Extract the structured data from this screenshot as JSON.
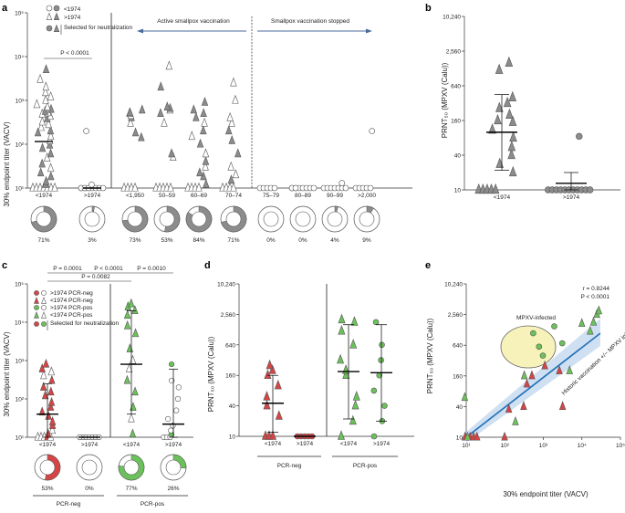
{
  "chart_data": [
    {
      "panel": "a",
      "type": "scatter",
      "ylabel": "30% endpoint titer (VACV)",
      "ylim_log10": [
        1,
        5
      ],
      "ytick_labels": [
        "10¹",
        "10²",
        "10³",
        "10⁴",
        "10⁵"
      ],
      "legend": [
        "<1974",
        ">1974",
        "Selected for neutralization"
      ],
      "annotations": {
        "pvalue": "P < 0.0001",
        "active": "Active smallpox vaccination",
        "stopped": "Smallpox vaccination stopped"
      },
      "categories": [
        "<1974",
        ">1974",
        "<1,950",
        "50–59",
        "60–69",
        "70–74",
        "75–79",
        "80–89",
        "90–99",
        ">2,000"
      ],
      "percent_labels": [
        "71%",
        "3%",
        "73%",
        "53%",
        "84%",
        "71%",
        "0%",
        "0%",
        "4%",
        "9%"
      ],
      "percent_values": [
        71,
        3,
        73,
        53,
        84,
        71,
        0,
        0,
        4,
        9
      ],
      "median_titers": [
        115,
        10,
        null,
        null,
        null,
        null,
        null,
        null,
        null,
        null
      ],
      "points": [
        [
          10,
          10,
          10,
          10,
          10,
          10,
          10,
          12,
          14,
          18,
          22,
          28,
          35,
          48,
          60,
          80,
          95,
          120,
          150,
          180,
          200,
          240,
          280,
          320,
          380,
          430,
          480,
          520,
          560,
          620,
          700,
          800,
          1000,
          1200,
          1500,
          2000,
          3000,
          5000
        ],
        [
          10,
          10,
          10,
          10,
          10,
          10,
          10,
          10,
          10,
          10,
          12,
          200
        ],
        [
          10,
          10,
          10,
          10,
          140,
          180,
          300,
          400,
          450,
          500,
          520,
          600
        ],
        [
          10,
          10,
          10,
          10,
          10,
          50,
          60,
          300,
          500,
          600,
          650,
          700,
          2000,
          6000
        ],
        [
          10,
          10,
          10,
          10,
          12,
          18,
          22,
          30,
          40,
          60,
          100,
          150,
          200,
          300,
          400,
          500,
          600,
          900
        ],
        [
          10,
          10,
          10,
          10,
          15,
          20,
          30,
          60,
          120,
          200,
          300,
          400,
          1000,
          2500
        ],
        [
          10,
          10,
          10,
          10,
          10
        ],
        [
          10,
          10,
          10,
          10,
          10,
          10,
          10,
          10,
          10
        ],
        [
          10,
          10,
          10,
          10,
          10,
          10,
          10,
          13
        ],
        [
          10,
          10,
          10,
          10,
          10,
          200
        ]
      ]
    },
    {
      "panel": "b",
      "type": "scatter",
      "ylabel": "PRNT₅₀ (MPXV (Calu))",
      "ytick_labels": [
        "10",
        "40",
        "160",
        "640",
        "2,560",
        "10,240"
      ],
      "categories": [
        "<1974",
        ">1974"
      ],
      "points": [
        [
          10,
          10,
          10,
          10,
          10,
          20,
          28,
          40,
          55,
          80,
          110,
          150,
          160,
          200,
          260,
          320,
          400,
          1200,
          1600
        ],
        [
          10,
          10,
          10,
          10,
          10,
          10,
          10,
          10,
          10,
          10,
          10,
          85
        ]
      ],
      "mean": [
        100,
        13
      ],
      "error_low": [
        22,
        10
      ],
      "error_high": [
        450,
        20
      ]
    },
    {
      "panel": "c",
      "type": "scatter",
      "ylabel": "30% endpoint titer (VACV)",
      "ytick_labels": [
        "10¹",
        "10²",
        "10³",
        "10⁴",
        "10⁵"
      ],
      "legend": [
        ">1974 PCR-neg",
        "<1974 PCR-neg",
        ">1974 PCR-pos",
        "<1974 PCR-pos",
        "Selected for neutralization"
      ],
      "pvalues": [
        "P = 0.0001",
        "P < 0.0001",
        "P = 0.0010",
        "P = 0.0082"
      ],
      "categories": [
        "<1974",
        ">1974",
        "<1974",
        ">1974"
      ],
      "groups": [
        "PCR-neg",
        "PCR-pos"
      ],
      "percent_labels": [
        "53%",
        "0%",
        "77%",
        "26%"
      ],
      "percent_values": [
        53,
        0,
        77,
        26
      ],
      "points": [
        [
          10,
          10,
          10,
          10,
          10,
          12,
          15,
          20,
          25,
          35,
          45,
          60,
          80,
          120,
          150,
          200,
          300,
          400,
          500,
          600,
          800
        ],
        [
          10,
          10,
          10,
          10,
          10,
          10,
          10,
          10
        ],
        [
          12,
          30,
          60,
          150,
          300,
          600,
          1000,
          2000,
          5000,
          8000,
          15000,
          20000,
          25000,
          30000
        ],
        [
          10,
          10,
          10,
          12,
          15,
          20,
          30,
          50,
          100,
          200,
          300,
          800
        ]
      ],
      "median": [
        40,
        10,
        800,
        22
      ],
      "error_low": [
        10,
        10,
        40,
        10
      ],
      "error_high": [
        250,
        10,
        20000,
        600
      ]
    },
    {
      "panel": "d",
      "type": "scatter",
      "ylabel": "PRNT₅₀ (MPXV (Calu))",
      "ytick_labels": [
        "10",
        "40",
        "160",
        "640",
        "2,560",
        "10,240"
      ],
      "categories": [
        "<1974",
        ">1974",
        "<1974",
        ">1974"
      ],
      "groups": [
        "PCR-neg",
        "PCR-pos"
      ],
      "points": [
        [
          10,
          10,
          10,
          25,
          40,
          60,
          100,
          160,
          200,
          250
        ],
        [
          10,
          10,
          10,
          10,
          10
        ],
        [
          10,
          20,
          40,
          60,
          160,
          200,
          320,
          640,
          1200,
          1800,
          2000
        ],
        [
          10,
          20,
          40,
          80,
          160,
          320,
          640,
          1800
        ]
      ],
      "mean": [
        45,
        10,
        190,
        180
      ],
      "error_low": [
        12,
        10,
        22,
        20
      ],
      "error_high": [
        160,
        10,
        1600,
        1600
      ]
    },
    {
      "panel": "e",
      "type": "scatter",
      "xlabel": "30% endpoint titer (VACV)",
      "ylabel": "PRNT₅₀ (MPXV (Calu))",
      "xtick_labels": [
        "10¹",
        "10²",
        "10³",
        "10⁴",
        "10⁵"
      ],
      "ytick_labels": [
        "10",
        "40",
        "160",
        "640",
        "2,560",
        "10,240"
      ],
      "stats": {
        "r": "r = 0.8244",
        "p": "P < 0.0001"
      },
      "ellipse_label": "MPXV-infected",
      "line_label": "Historic vaccination +/− MPXV infected",
      "points_red": [
        [
          10,
          10
        ],
        [
          12,
          10
        ],
        [
          15,
          10
        ],
        [
          20,
          10
        ],
        [
          100,
          10
        ],
        [
          300,
          40
        ],
        [
          400,
          110
        ],
        [
          500,
          160
        ],
        [
          1000,
          250
        ],
        [
          2500,
          200
        ],
        [
          3000,
          40
        ],
        [
          120,
          35
        ]
      ],
      "points_green": [
        [
          10,
          60
        ],
        [
          12,
          10
        ],
        [
          200,
          20
        ],
        [
          300,
          160
        ],
        [
          500,
          1100
        ],
        [
          800,
          600
        ],
        [
          1000,
          400
        ],
        [
          2000,
          1500
        ],
        [
          3000,
          700
        ],
        [
          5000,
          200
        ],
        [
          10000,
          1700
        ],
        [
          15000,
          1200
        ],
        [
          20000,
          1800
        ],
        [
          25000,
          2560
        ],
        [
          30000,
          3000
        ]
      ],
      "fit": {
        "x": [
          10,
          30000
        ],
        "y": [
          10,
          1100
        ]
      }
    }
  ]
}
